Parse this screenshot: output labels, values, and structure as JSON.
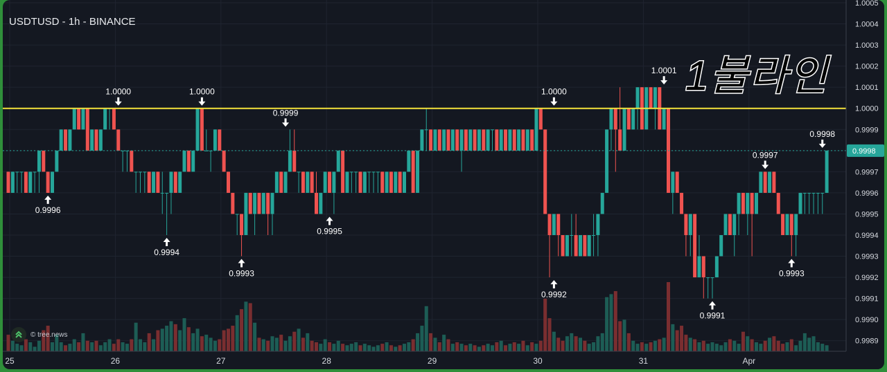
{
  "title": "USDTUSD - 1h - BINANCE",
  "overlay_text": "1불라인",
  "watermark": "© tree.news",
  "colors": {
    "up": "#26a69a",
    "down": "#ef5350",
    "hline": "#f5e33b",
    "bg": "#141821",
    "price_tag": "#26a69a"
  },
  "current_price_label": "0.9998",
  "chart_data": {
    "type": "candlestick",
    "ylim": [
      0.99885,
      1.0005
    ],
    "y_ticks": [
      "1.0005",
      "1.0004",
      "1.0003",
      "1.0002",
      "1.0001",
      "1.0000",
      "0.9999",
      "0.9998",
      "0.9997",
      "0.9996",
      "0.9995",
      "0.9994",
      "0.9993",
      "0.9992",
      "0.9991",
      "0.9990",
      "0.9989"
    ],
    "x_ticks": [
      {
        "label": "25",
        "t": 0
      },
      {
        "label": "26",
        "t": 24
      },
      {
        "label": "27",
        "t": 48
      },
      {
        "label": "28",
        "t": 72
      },
      {
        "label": "29",
        "t": 96
      },
      {
        "label": "30",
        "t": 120
      },
      {
        "label": "31",
        "t": 144
      },
      {
        "label": "Apr",
        "t": 168
      }
    ],
    "horizontal_line": 1.0,
    "current_price": 0.9998,
    "annotations": [
      {
        "label": "0.9996",
        "t": 9,
        "price": 0.9996,
        "dir": "low"
      },
      {
        "label": "1.0000",
        "t": 25,
        "price": 1.0,
        "dir": "high"
      },
      {
        "label": "0.9994",
        "t": 36,
        "price": 0.9994,
        "dir": "low"
      },
      {
        "label": "1.0000",
        "t": 44,
        "price": 1.0,
        "dir": "high"
      },
      {
        "label": "0.9993",
        "t": 53,
        "price": 0.9993,
        "dir": "low"
      },
      {
        "label": "0.9999",
        "t": 63,
        "price": 0.9999,
        "dir": "high"
      },
      {
        "label": "0.9995",
        "t": 73,
        "price": 0.9995,
        "dir": "low"
      },
      {
        "label": "1.0000",
        "t": 124,
        "price": 1.0,
        "dir": "high"
      },
      {
        "label": "0.9992",
        "t": 124,
        "price": 0.9992,
        "dir": "low"
      },
      {
        "label": "1.0001",
        "t": 149,
        "price": 1.0001,
        "dir": "high"
      },
      {
        "label": "0.9991",
        "t": 160,
        "price": 0.9991,
        "dir": "low"
      },
      {
        "label": "0.9997",
        "t": 172,
        "price": 0.9997,
        "dir": "high"
      },
      {
        "label": "0.9993",
        "t": 178,
        "price": 0.9993,
        "dir": "low"
      },
      {
        "label": "0.9998",
        "t": 185,
        "price": 0.9998,
        "dir": "high"
      }
    ],
    "candles": [
      [
        0.9997,
        0.9997,
        0.9996,
        0.9996,
        22
      ],
      [
        0.9996,
        0.9997,
        0.9996,
        0.9997,
        14
      ],
      [
        0.9997,
        0.9997,
        0.9996,
        0.9997,
        10
      ],
      [
        0.9997,
        0.9997,
        0.9996,
        0.9997,
        8
      ],
      [
        0.9997,
        0.9997,
        0.9996,
        0.9996,
        16
      ],
      [
        0.9996,
        0.9997,
        0.9996,
        0.9997,
        12
      ],
      [
        0.9997,
        0.9997,
        0.9996,
        0.9997,
        6
      ],
      [
        0.9997,
        0.9998,
        0.9996,
        0.9998,
        14
      ],
      [
        0.9998,
        0.9998,
        0.9997,
        0.9997,
        28
      ],
      [
        0.9997,
        0.9997,
        0.9996,
        0.9996,
        34
      ],
      [
        0.9996,
        0.9997,
        0.9996,
        0.9997,
        12
      ],
      [
        0.9997,
        0.9998,
        0.9997,
        0.9998,
        22
      ],
      [
        0.9998,
        0.9999,
        0.9998,
        0.9999,
        12
      ],
      [
        0.9999,
        0.9999,
        0.9998,
        0.9998,
        8
      ],
      [
        0.9998,
        0.9999,
        0.9998,
        0.9999,
        10
      ],
      [
        0.9999,
        1.0,
        0.9999,
        1.0,
        16
      ],
      [
        1.0,
        1.0,
        0.9999,
        0.9999,
        12
      ],
      [
        0.9999,
        1.0,
        0.9999,
        1.0,
        24
      ],
      [
        1.0,
        1.0,
        0.9998,
        0.9998,
        14
      ],
      [
        0.9998,
        0.9999,
        0.9998,
        0.9999,
        12
      ],
      [
        0.9999,
        0.9999,
        0.9998,
        0.9998,
        14
      ],
      [
        0.9998,
        0.9999,
        0.9998,
        0.9999,
        8
      ],
      [
        0.9999,
        1.0,
        0.9999,
        1.0,
        12
      ],
      [
        1.0,
        1.0,
        0.9999,
        1.0,
        16
      ],
      [
        1.0,
        1.0,
        0.9999,
        0.9999,
        10
      ],
      [
        0.9999,
        0.9999,
        0.9998,
        0.9998,
        16
      ],
      [
        0.9998,
        0.9998,
        0.9997,
        0.9998,
        12
      ],
      [
        0.9998,
        0.9998,
        0.9997,
        0.9998,
        10
      ],
      [
        0.9998,
        0.9998,
        0.9997,
        0.9997,
        16
      ],
      [
        0.9997,
        0.9997,
        0.9996,
        0.9997,
        38
      ],
      [
        0.9997,
        0.9997,
        0.9996,
        0.9997,
        16
      ],
      [
        0.9997,
        0.9997,
        0.9996,
        0.9997,
        12
      ],
      [
        0.9997,
        0.9997,
        0.9996,
        0.9996,
        24
      ],
      [
        0.9996,
        0.9997,
        0.9996,
        0.9997,
        16
      ],
      [
        0.9997,
        0.9997,
        0.9996,
        0.9996,
        28
      ],
      [
        0.9996,
        0.9997,
        0.9995,
        0.9996,
        30
      ],
      [
        0.9996,
        0.9996,
        0.9994,
        0.9996,
        34
      ],
      [
        0.9996,
        0.9997,
        0.9995,
        0.9997,
        40
      ],
      [
        0.9997,
        0.9997,
        0.9996,
        0.9996,
        36
      ],
      [
        0.9996,
        0.9997,
        0.9996,
        0.9997,
        28
      ],
      [
        0.9997,
        0.9998,
        0.9997,
        0.9998,
        44
      ],
      [
        0.9998,
        0.9998,
        0.9997,
        0.9997,
        32
      ],
      [
        0.9997,
        0.9998,
        0.9997,
        0.9998,
        24
      ],
      [
        0.9998,
        1.0,
        0.9998,
        1.0,
        30
      ],
      [
        1.0,
        1.0,
        0.9998,
        0.9998,
        20
      ],
      [
        0.9998,
        0.9999,
        0.9998,
        0.9998,
        22
      ],
      [
        0.9998,
        0.9998,
        0.9997,
        0.9998,
        18
      ],
      [
        0.9998,
        0.9999,
        0.9998,
        0.9999,
        14
      ],
      [
        0.9999,
        0.9999,
        0.9998,
        0.9998,
        16
      ],
      [
        0.9998,
        0.9998,
        0.9997,
        0.9997,
        28
      ],
      [
        0.9997,
        0.9997,
        0.9996,
        0.9996,
        30
      ],
      [
        0.9996,
        0.9996,
        0.9995,
        0.9995,
        34
      ],
      [
        0.9995,
        0.9995,
        0.9994,
        0.9995,
        48
      ],
      [
        0.9995,
        0.9995,
        0.9993,
        0.9994,
        56
      ],
      [
        0.9994,
        0.9996,
        0.9994,
        0.9996,
        66
      ],
      [
        0.9996,
        0.9996,
        0.9995,
        0.9995,
        64
      ],
      [
        0.9995,
        0.9996,
        0.9994,
        0.9996,
        38
      ],
      [
        0.9996,
        0.9996,
        0.9995,
        0.9995,
        18
      ],
      [
        0.9995,
        0.9996,
        0.9995,
        0.9996,
        16
      ],
      [
        0.9996,
        0.9996,
        0.9994,
        0.9995,
        14
      ],
      [
        0.9995,
        0.9996,
        0.9994,
        0.9996,
        20
      ],
      [
        0.9996,
        0.9997,
        0.9996,
        0.9997,
        18
      ],
      [
        0.9997,
        0.9997,
        0.9996,
        0.9996,
        22
      ],
      [
        0.9996,
        0.9997,
        0.9996,
        0.9997,
        14
      ],
      [
        0.9997,
        0.9999,
        0.9997,
        0.9998,
        20
      ],
      [
        0.9998,
        0.9999,
        0.9997,
        0.9997,
        26
      ],
      [
        0.9997,
        0.9997,
        0.9996,
        0.9997,
        30
      ],
      [
        0.9997,
        0.9997,
        0.9996,
        0.9996,
        18
      ],
      [
        0.9996,
        0.9997,
        0.9996,
        0.9997,
        24
      ],
      [
        0.9997,
        0.9997,
        0.9996,
        0.9996,
        14
      ],
      [
        0.9996,
        0.9997,
        0.9995,
        0.9995,
        12
      ],
      [
        0.9995,
        0.9996,
        0.9995,
        0.9996,
        10
      ],
      [
        0.9996,
        0.9997,
        0.9996,
        0.9997,
        16
      ],
      [
        0.9997,
        0.9997,
        0.9996,
        0.9996,
        12
      ],
      [
        0.9996,
        0.9997,
        0.9995,
        0.9997,
        10
      ],
      [
        0.9997,
        0.9998,
        0.9997,
        0.9998,
        14
      ],
      [
        0.9998,
        0.9998,
        0.9996,
        0.9996,
        10
      ],
      [
        0.9996,
        0.9997,
        0.9996,
        0.9997,
        8
      ],
      [
        0.9997,
        0.9997,
        0.9996,
        0.9997,
        10
      ],
      [
        0.9997,
        0.9997,
        0.9996,
        0.9997,
        12
      ],
      [
        0.9997,
        0.9997,
        0.9996,
        0.9996,
        8
      ],
      [
        0.9996,
        0.9997,
        0.9996,
        0.9997,
        10
      ],
      [
        0.9997,
        0.9997,
        0.9996,
        0.9997,
        8
      ],
      [
        0.9997,
        0.9997,
        0.9996,
        0.9997,
        6
      ],
      [
        0.9997,
        0.9997,
        0.9996,
        0.9997,
        8
      ],
      [
        0.9997,
        0.9997,
        0.9996,
        0.9996,
        10
      ],
      [
        0.9996,
        0.9997,
        0.9996,
        0.9997,
        12
      ],
      [
        0.9997,
        0.9997,
        0.9996,
        0.9996,
        8
      ],
      [
        0.9996,
        0.9997,
        0.9996,
        0.9997,
        6
      ],
      [
        0.9997,
        0.9997,
        0.9996,
        0.9996,
        8
      ],
      [
        0.9996,
        0.9997,
        0.9996,
        0.9997,
        10
      ],
      [
        0.9997,
        0.9998,
        0.9997,
        0.9998,
        12
      ],
      [
        0.9998,
        0.9998,
        0.9996,
        0.9996,
        16
      ],
      [
        0.9996,
        0.9998,
        0.9996,
        0.9998,
        24
      ],
      [
        0.9998,
        0.9999,
        0.9998,
        0.9999,
        34
      ],
      [
        0.9999,
        1.0,
        0.9998,
        0.9999,
        60
      ],
      [
        0.9999,
        0.9999,
        0.9998,
        0.9998,
        24
      ],
      [
        0.9998,
        0.9999,
        0.9998,
        0.9999,
        18
      ],
      [
        0.9999,
        0.9999,
        0.9998,
        0.9998,
        12
      ],
      [
        0.9998,
        0.9999,
        0.9998,
        0.9999,
        22
      ],
      [
        0.9999,
        0.9999,
        0.9998,
        0.9998,
        16
      ],
      [
        0.9998,
        0.9999,
        0.9998,
        0.9999,
        10
      ],
      [
        0.9999,
        0.9999,
        0.9998,
        0.9998,
        12
      ],
      [
        0.9998,
        0.9999,
        0.9997,
        0.9999,
        10
      ],
      [
        0.9999,
        0.9999,
        0.9998,
        0.9998,
        8
      ],
      [
        0.9998,
        0.9999,
        0.9998,
        0.9999,
        10
      ],
      [
        0.9999,
        0.9999,
        0.9998,
        0.9998,
        8
      ],
      [
        0.9998,
        0.9999,
        0.9998,
        0.9999,
        6
      ],
      [
        0.9999,
        0.9999,
        0.9998,
        0.9998,
        8
      ],
      [
        0.9998,
        0.9999,
        0.9998,
        0.9999,
        10
      ],
      [
        0.9999,
        0.9999,
        0.9998,
        0.9999,
        8
      ],
      [
        0.9999,
        0.9999,
        0.9998,
        0.9998,
        12
      ],
      [
        0.9998,
        0.9999,
        0.9998,
        0.9999,
        14
      ],
      [
        0.9999,
        0.9999,
        0.9998,
        0.9998,
        8
      ],
      [
        0.9998,
        0.9999,
        0.9998,
        0.9999,
        10
      ],
      [
        0.9999,
        0.9999,
        0.9998,
        0.9998,
        12
      ],
      [
        0.9998,
        0.9999,
        0.9998,
        0.9999,
        10
      ],
      [
        0.9999,
        0.9999,
        0.9998,
        0.9998,
        14
      ],
      [
        0.9998,
        0.9999,
        0.9998,
        0.9999,
        8
      ],
      [
        0.9999,
        0.9999,
        0.9998,
        0.9998,
        12
      ],
      [
        0.9998,
        1.0,
        0.9998,
        1.0,
        10
      ],
      [
        1.0,
        1.0,
        0.9999,
        0.9999,
        14
      ],
      [
        0.9999,
        0.9999,
        0.9995,
        0.9995,
        70
      ],
      [
        0.9995,
        0.9995,
        0.9992,
        0.9994,
        44
      ],
      [
        0.9994,
        0.9995,
        0.9994,
        0.9995,
        26
      ],
      [
        0.9995,
        0.9995,
        0.9993,
        0.9994,
        18
      ],
      [
        0.9994,
        0.9994,
        0.9993,
        0.9993,
        14
      ],
      [
        0.9993,
        0.9994,
        0.9993,
        0.9994,
        20
      ],
      [
        0.9994,
        0.9995,
        0.9993,
        0.9994,
        24
      ],
      [
        0.9994,
        0.9995,
        0.9993,
        0.9993,
        20
      ],
      [
        0.9993,
        0.9994,
        0.9993,
        0.9994,
        18
      ],
      [
        0.9994,
        0.9994,
        0.9993,
        0.9993,
        14
      ],
      [
        0.9993,
        0.9994,
        0.9993,
        0.9994,
        10
      ],
      [
        0.9994,
        0.9995,
        0.9993,
        0.9994,
        12
      ],
      [
        0.9994,
        0.9995,
        0.9993,
        0.9995,
        20
      ],
      [
        0.9995,
        0.9996,
        0.9995,
        0.9996,
        24
      ],
      [
        0.9996,
        0.9999,
        0.9996,
        0.9999,
        72
      ],
      [
        0.9999,
        1.0,
        0.9998,
        1.0,
        76
      ],
      [
        1.0,
        1.0,
        0.9997,
        0.9999,
        80
      ],
      [
        0.9999,
        1.0001,
        0.9998,
        0.9998,
        40
      ],
      [
        0.9998,
        1.0,
        0.9998,
        1.0,
        42
      ],
      [
        1.0,
        1.0,
        0.9999,
        0.9999,
        24
      ],
      [
        0.9999,
        1.0,
        0.9999,
        1.0,
        14
      ],
      [
        1.0,
        1.0001,
        0.9999,
        1.0001,
        10
      ],
      [
        1.0001,
        1.0001,
        0.9999,
        0.9999,
        12
      ],
      [
        0.9999,
        1.0001,
        0.9999,
        1.0001,
        10
      ],
      [
        1.0001,
        1.0001,
        1.0,
        1.0,
        12
      ],
      [
        1.0,
        1.0001,
        0.9999,
        1.0001,
        14
      ],
      [
        1.0001,
        1.0001,
        0.9999,
        0.9999,
        16
      ],
      [
        0.9999,
        1.0,
        0.9999,
        1.0,
        18
      ],
      [
        1.0,
        1.0,
        0.9996,
        0.9996,
        92
      ],
      [
        0.9996,
        0.9997,
        0.9995,
        0.9997,
        36
      ],
      [
        0.9997,
        0.9997,
        0.9996,
        0.9996,
        28
      ],
      [
        0.9996,
        0.9996,
        0.9995,
        0.9995,
        34
      ],
      [
        0.9995,
        0.9995,
        0.9993,
        0.9994,
        22
      ],
      [
        0.9994,
        0.9995,
        0.9993,
        0.9995,
        18
      ],
      [
        0.9995,
        0.9995,
        0.9992,
        0.9992,
        16
      ],
      [
        0.9992,
        0.9994,
        0.9992,
        0.9993,
        12
      ],
      [
        0.9993,
        0.9993,
        0.9991,
        0.9992,
        14
      ],
      [
        0.9992,
        0.9992,
        0.9991,
        0.9992,
        10
      ],
      [
        0.9992,
        0.9992,
        0.9991,
        0.9992,
        12
      ],
      [
        0.9992,
        0.9993,
        0.9992,
        0.9993,
        10
      ],
      [
        0.9993,
        0.9994,
        0.9993,
        0.9994,
        8
      ],
      [
        0.9994,
        0.9995,
        0.9994,
        0.9995,
        12
      ],
      [
        0.9995,
        0.9995,
        0.9994,
        0.9994,
        16
      ],
      [
        0.9994,
        0.9995,
        0.9993,
        0.9995,
        14
      ],
      [
        0.9995,
        0.9996,
        0.9994,
        0.9996,
        10
      ],
      [
        0.9996,
        0.9996,
        0.9995,
        0.9995,
        26
      ],
      [
        0.9995,
        0.9996,
        0.9994,
        0.9996,
        20
      ],
      [
        0.9996,
        0.9996,
        0.9993,
        0.9995,
        16
      ],
      [
        0.9995,
        0.9996,
        0.9995,
        0.9996,
        12
      ],
      [
        0.9996,
        0.9997,
        0.9996,
        0.9997,
        10
      ],
      [
        0.9997,
        0.9997,
        0.9996,
        0.9996,
        14
      ],
      [
        0.9996,
        0.9997,
        0.9996,
        0.9997,
        18
      ],
      [
        0.9997,
        0.9997,
        0.9996,
        0.9996,
        20
      ],
      [
        0.9996,
        0.9996,
        0.9995,
        0.9995,
        14
      ],
      [
        0.9995,
        0.9995,
        0.9994,
        0.9994,
        10
      ],
      [
        0.9994,
        0.9995,
        0.9994,
        0.9995,
        12
      ],
      [
        0.9995,
        0.9995,
        0.9993,
        0.9994,
        16
      ],
      [
        0.9994,
        0.9995,
        0.9993,
        0.9995,
        8
      ],
      [
        0.9995,
        0.9996,
        0.9995,
        0.9996,
        14
      ],
      [
        0.9996,
        0.9996,
        0.9995,
        0.9996,
        24
      ],
      [
        0.9996,
        0.9996,
        0.9995,
        0.9996,
        18
      ],
      [
        0.9996,
        0.9996,
        0.9995,
        0.9996,
        20
      ],
      [
        0.9996,
        0.9996,
        0.9995,
        0.9996,
        12
      ],
      [
        0.9996,
        0.9996,
        0.9995,
        0.9996,
        10
      ],
      [
        0.9996,
        0.9998,
        0.9996,
        0.9998,
        8
      ]
    ]
  }
}
